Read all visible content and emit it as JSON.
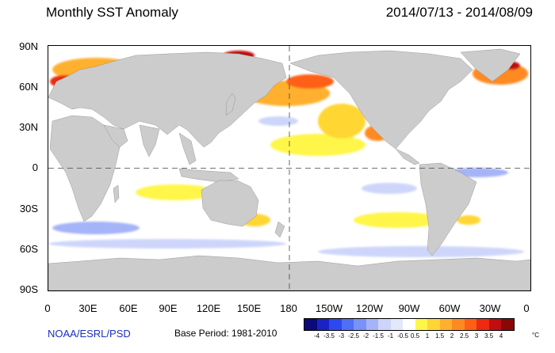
{
  "title": "Monthly SST Anomaly",
  "date_range": "2014/07/13 - 2014/08/09",
  "credit": "NOAA/ESRL/PSD",
  "base_period": "Base Period: 1981-2010",
  "axes": {
    "y_ticks": [
      "90N",
      "60N",
      "30N",
      "0",
      "30S",
      "60S",
      "90S"
    ],
    "x_ticks": [
      "0",
      "30E",
      "60E",
      "90E",
      "120E",
      "150E",
      "180",
      "150W",
      "120W",
      "90W",
      "60W",
      "30W",
      "0"
    ]
  },
  "colorbar": {
    "unit": "°C",
    "labels": [
      "-4",
      "-3.5",
      "-3",
      "-2.5",
      "-2",
      "-1.5",
      "-1",
      "-0.5",
      "0.5",
      "1",
      "1.5",
      "2",
      "2.5",
      "3",
      "3.5",
      "4"
    ],
    "colors": [
      "#0a0a7a",
      "#1b22c4",
      "#2d48ef",
      "#4f6ff5",
      "#7a91f7",
      "#a5b3f8",
      "#cdd5fb",
      "#e3e8fd",
      "#ffffff",
      "#fff64a",
      "#ffd633",
      "#ffb02e",
      "#ff8a22",
      "#ff5f15",
      "#ee2a10",
      "#c10d0d",
      "#8a0707"
    ]
  },
  "colors": {
    "land": "#cccccc",
    "credit_text": "#1c2fbf"
  }
}
